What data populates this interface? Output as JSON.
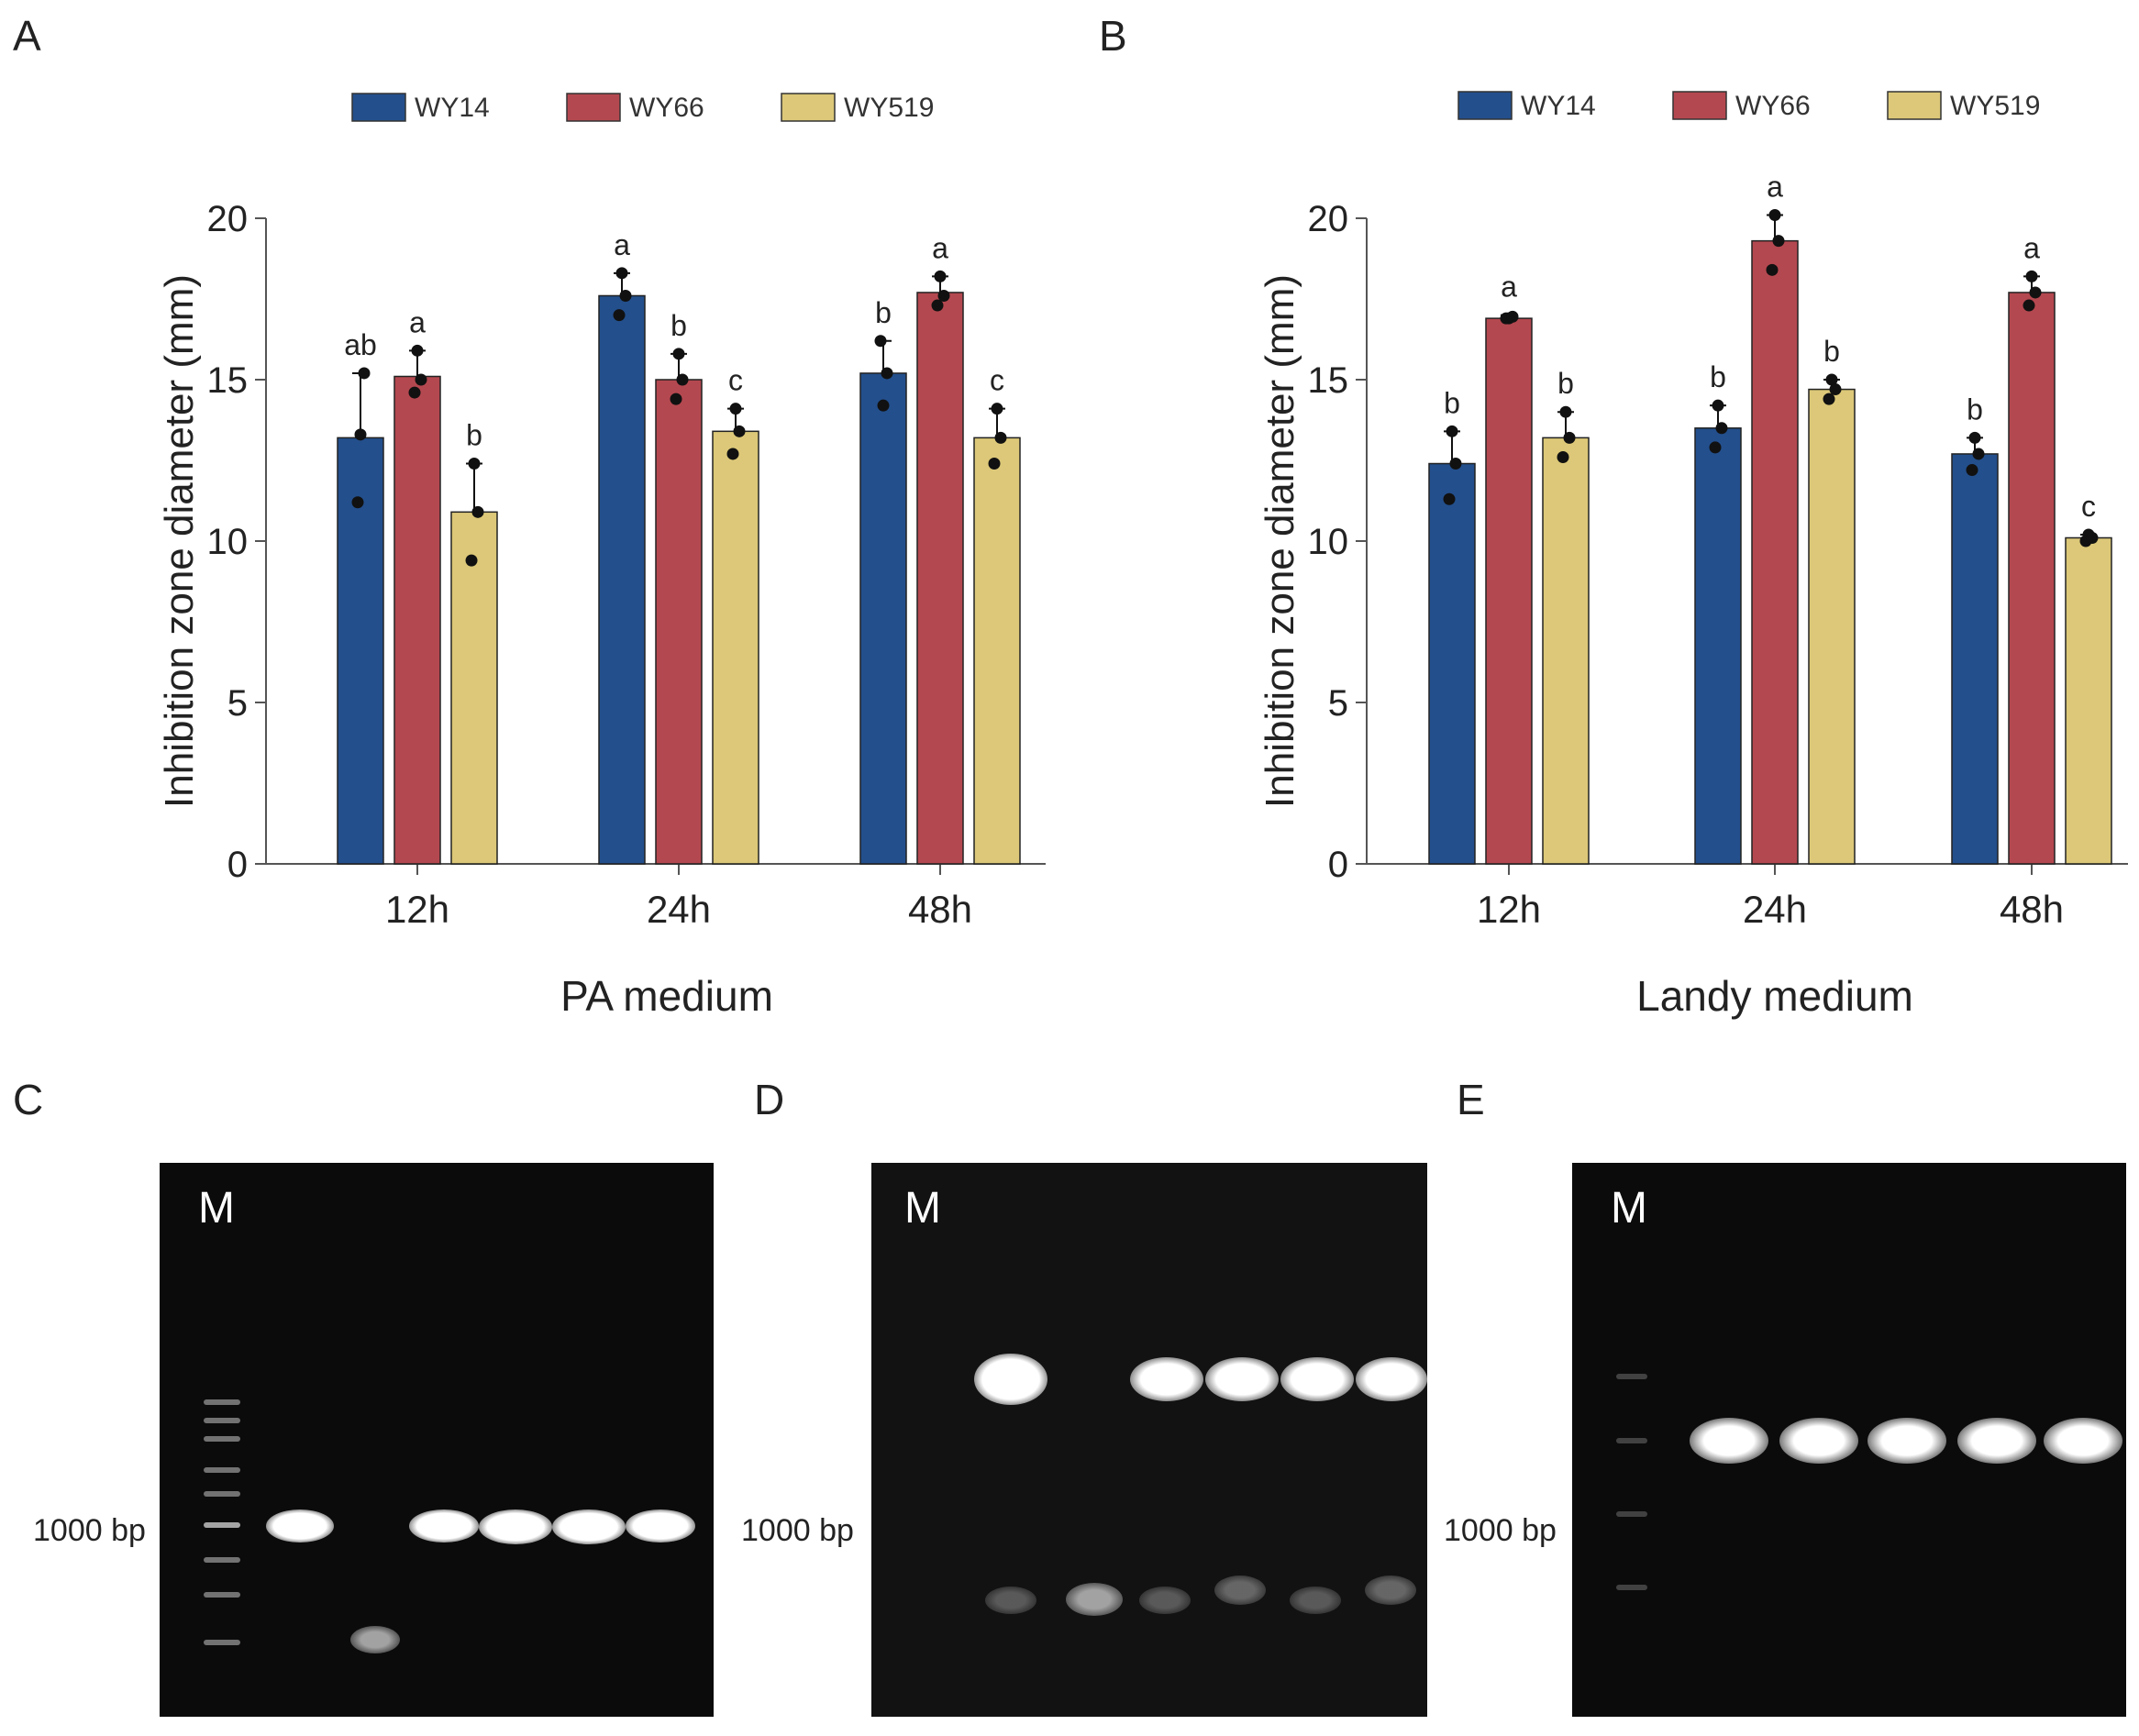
{
  "panels": {
    "A": "A",
    "B": "B",
    "C": "C",
    "D": "D",
    "E": "E"
  },
  "colors": {
    "WY14": "#234f8c",
    "WY66": "#b44850",
    "WY519": "#dcc878"
  },
  "chart_data": [
    {
      "type": "bar",
      "panel": "A",
      "categories": [
        "12h",
        "24h",
        "48h"
      ],
      "series": [
        {
          "name": "WY14",
          "values": [
            13.2,
            17.6,
            15.2
          ],
          "errors": [
            2.0,
            0.7,
            1.0
          ],
          "letters": [
            "ab",
            "a",
            "b"
          ],
          "points": [
            [
              13.3,
              11.2,
              15.2
            ],
            [
              18.3,
              17.0,
              17.6
            ],
            [
              14.2,
              16.2,
              15.2
            ]
          ]
        },
        {
          "name": "WY66",
          "values": [
            15.1,
            15.0,
            17.7
          ],
          "errors": [
            0.8,
            0.8,
            0.5
          ],
          "letters": [
            "a",
            "b",
            "a"
          ],
          "points": [
            [
              15.9,
              14.6,
              15.0
            ],
            [
              15.8,
              14.4,
              15.0
            ],
            [
              18.2,
              17.3,
              17.6
            ]
          ]
        },
        {
          "name": "WY519",
          "values": [
            10.9,
            13.4,
            13.2
          ],
          "errors": [
            1.5,
            0.7,
            0.9
          ],
          "letters": [
            "b",
            "c",
            "c"
          ],
          "points": [
            [
              12.4,
              9.4,
              10.9
            ],
            [
              14.1,
              12.7,
              13.4
            ],
            [
              14.1,
              12.4,
              13.2
            ]
          ]
        }
      ],
      "ylabel": "Inhibition zone diameter (mm)",
      "xlabel": "PA medium",
      "ylim": [
        0,
        20
      ],
      "yticks": [
        "0",
        "5",
        "10",
        "15",
        "20"
      ],
      "legend": "top"
    },
    {
      "type": "bar",
      "panel": "B",
      "categories": [
        "12h",
        "24h",
        "48h"
      ],
      "series": [
        {
          "name": "WY14",
          "values": [
            12.4,
            13.5,
            12.7
          ],
          "errors": [
            1.0,
            0.7,
            0.5
          ],
          "letters": [
            "b",
            "b",
            "b"
          ],
          "points": [
            [
              13.4,
              11.3,
              12.4
            ],
            [
              14.2,
              12.9,
              13.5
            ],
            [
              13.2,
              12.2,
              12.7
            ]
          ]
        },
        {
          "name": "WY66",
          "values": [
            16.9,
            19.3,
            17.7
          ],
          "errors": [
            0.1,
            0.8,
            0.5
          ],
          "letters": [
            "a",
            "a",
            "a"
          ],
          "points": [
            [
              16.9,
              16.9,
              16.95
            ],
            [
              20.1,
              18.4,
              19.3
            ],
            [
              18.2,
              17.3,
              17.7
            ]
          ]
        },
        {
          "name": "WY519",
          "values": [
            13.2,
            14.7,
            10.1
          ],
          "errors": [
            0.8,
            0.3,
            0.1
          ],
          "letters": [
            "b",
            "b",
            "c"
          ],
          "points": [
            [
              14.0,
              12.6,
              13.2
            ],
            [
              15.0,
              14.4,
              14.7
            ],
            [
              10.2,
              10.0,
              10.1
            ]
          ]
        }
      ],
      "ylabel": "Inhibition zone diameter (mm)",
      "xlabel": "Landy medium",
      "ylim": [
        0,
        20
      ],
      "yticks": [
        "0",
        "5",
        "10",
        "15",
        "20"
      ],
      "legend": "top"
    }
  ],
  "gels": {
    "marker_label": "M",
    "bp_label": "1000 bp"
  }
}
